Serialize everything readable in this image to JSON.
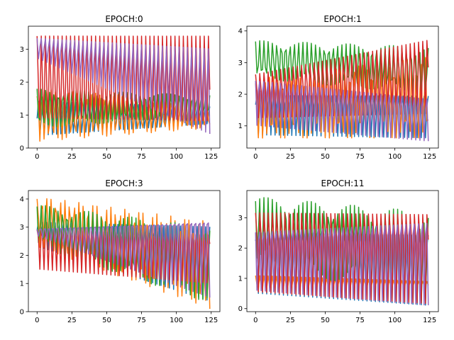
{
  "figure": {
    "background": "#ffffff"
  },
  "chart_data": [
    {
      "type": "line",
      "title": "EPOCH:0",
      "xlim": [
        0,
        125
      ],
      "ylim": [
        0,
        3.7
      ],
      "xticks": [
        0,
        25,
        50,
        75,
        100,
        125
      ],
      "yticks": [
        0,
        1,
        2,
        3
      ],
      "grid": false,
      "n_points": 125,
      "series": [
        {
          "color": "#1f77b4",
          "period": 3.0,
          "phase": 0.0,
          "low": [
            0.3,
            0.7
          ],
          "high": [
            1.5,
            1.3
          ]
        },
        {
          "color": "#ff7f0e",
          "period": 3.2,
          "phase": 0.8,
          "low": [
            0.2,
            0.6
          ],
          "high": [
            1.8,
            1.4
          ]
        },
        {
          "color": "#2ca02c",
          "period": 3.1,
          "phase": 1.6,
          "low": [
            0.6,
            1.0
          ],
          "high": [
            1.8,
            1.6
          ]
        },
        {
          "color": "#d62728",
          "period": 3.0,
          "phase": 1.2,
          "low": [
            0.6,
            0.5
          ],
          "high": [
            3.5,
            3.5
          ]
        },
        {
          "color": "#9467bd",
          "period": 3.0,
          "phase": 2.2,
          "low": [
            2.7,
            0.3
          ],
          "high": [
            3.4,
            3.3
          ]
        }
      ]
    },
    {
      "type": "line",
      "title": "EPOCH:1",
      "xlim": [
        0,
        125
      ],
      "ylim": [
        0.3,
        4.15
      ],
      "xticks": [
        0,
        25,
        50,
        75,
        100,
        125
      ],
      "yticks": [
        1,
        2,
        3,
        4
      ],
      "grid": false,
      "n_points": 125,
      "series": [
        {
          "color": "#1f77b4",
          "period": 3.0,
          "phase": 0.3,
          "low": [
            0.7,
            0.6
          ],
          "high": [
            2.2,
            2.2
          ]
        },
        {
          "color": "#ff7f0e",
          "period": 3.2,
          "phase": 1.0,
          "low": [
            0.6,
            0.6
          ],
          "high": [
            2.5,
            3.2
          ]
        },
        {
          "color": "#2ca02c",
          "period": 3.1,
          "phase": 1.9,
          "low": [
            2.5,
            2.0
          ],
          "high": [
            3.7,
            3.5
          ]
        },
        {
          "color": "#d62728",
          "period": 3.0,
          "phase": 0.9,
          "low": [
            1.2,
            1.3
          ],
          "high": [
            2.8,
            4.0
          ]
        },
        {
          "color": "#9467bd",
          "period": 3.0,
          "phase": 2.4,
          "low": [
            1.0,
            0.5
          ],
          "high": [
            2.7,
            2.1
          ]
        }
      ]
    },
    {
      "type": "line",
      "title": "EPOCH:3",
      "xlim": [
        0,
        125
      ],
      "ylim": [
        0,
        4.3
      ],
      "xticks": [
        0,
        25,
        50,
        75,
        100,
        125
      ],
      "yticks": [
        0,
        1,
        2,
        3,
        4
      ],
      "grid": false,
      "n_points": 125,
      "series": [
        {
          "color": "#1f77b4",
          "period": 3.0,
          "phase": 0.2,
          "low": [
            2.3,
            0.3
          ],
          "high": [
            3.3,
            3.4
          ]
        },
        {
          "color": "#ff7f0e",
          "period": 3.3,
          "phase": 1.1,
          "low": [
            2.3,
            0.1
          ],
          "high": [
            4.1,
            3.2
          ]
        },
        {
          "color": "#2ca02c",
          "period": 3.1,
          "phase": 2.0,
          "low": [
            2.3,
            0.3
          ],
          "high": [
            3.8,
            3.0
          ]
        },
        {
          "color": "#d62728",
          "period": 3.0,
          "phase": 0.7,
          "low": [
            1.5,
            1.0
          ],
          "high": [
            3.2,
            3.1
          ]
        },
        {
          "color": "#9467bd",
          "period": 3.0,
          "phase": 2.6,
          "low": [
            2.7,
            0.5
          ],
          "high": [
            3.0,
            4.0
          ]
        }
      ]
    },
    {
      "type": "line",
      "title": "EPOCH:11",
      "xlim": [
        0,
        125
      ],
      "ylim": [
        -0.1,
        3.9
      ],
      "xticks": [
        0,
        25,
        50,
        75,
        100,
        125
      ],
      "yticks": [
        0,
        1,
        2,
        3
      ],
      "grid": false,
      "n_points": 125,
      "series": [
        {
          "color": "#1f77b4",
          "period": 3.0,
          "phase": 0.4,
          "low": [
            0.5,
            0.1
          ],
          "high": [
            3.0,
            3.0
          ]
        },
        {
          "color": "#ff7f0e",
          "period": 3.0,
          "phase": 1.3,
          "low": [
            0.6,
            0.7
          ],
          "high": [
            1.1,
            0.9
          ]
        },
        {
          "color": "#2ca02c",
          "period": 3.1,
          "phase": 2.1,
          "low": [
            1.5,
            0.2
          ],
          "high": [
            3.7,
            3.2
          ]
        },
        {
          "color": "#d62728",
          "period": 3.0,
          "phase": 0.8,
          "low": [
            0.5,
            0.1
          ],
          "high": [
            3.6,
            3.6
          ]
        },
        {
          "color": "#9467bd",
          "period": 3.0,
          "phase": 2.5,
          "low": [
            0.6,
            0.1
          ],
          "high": [
            3.0,
            3.5
          ]
        }
      ]
    }
  ]
}
